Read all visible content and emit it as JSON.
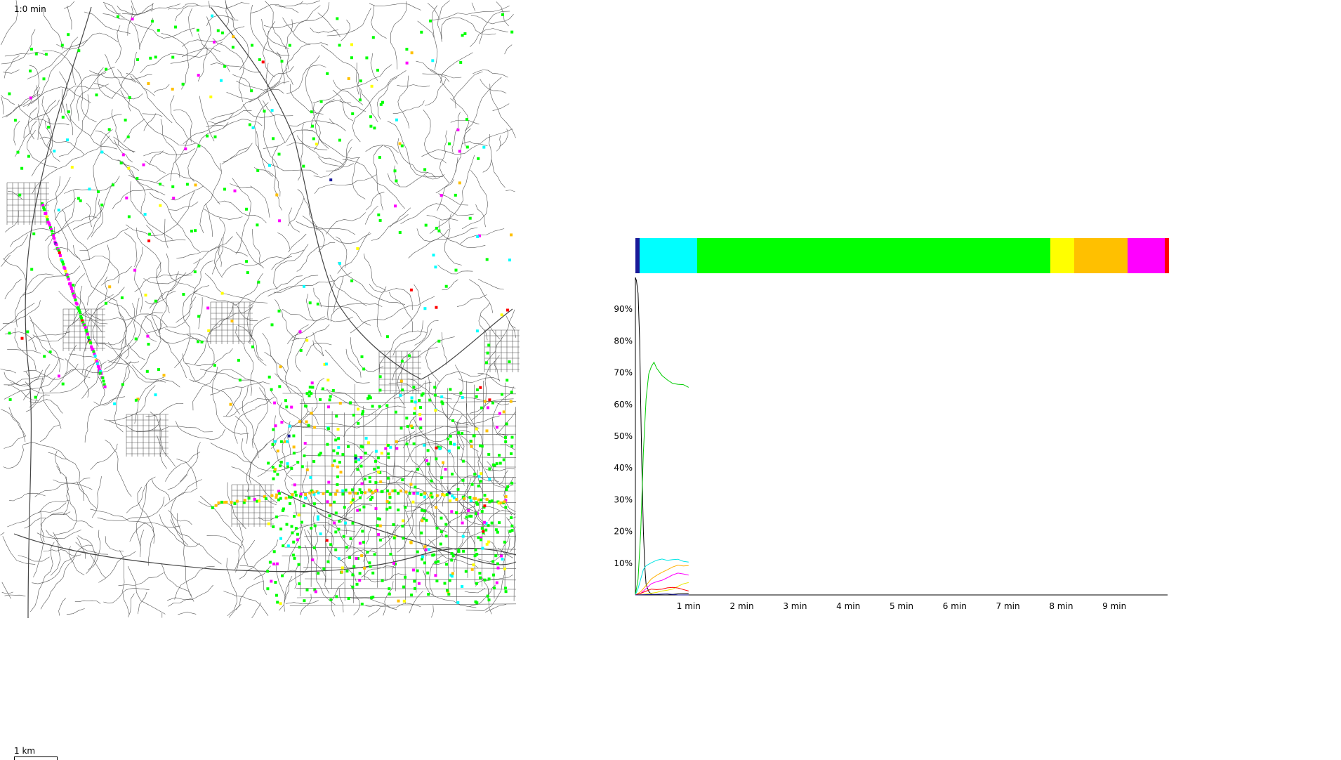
{
  "view": {
    "time_readout": "1:0 min",
    "scale_label": "1 km"
  },
  "state_colors": {
    "navy": "#1a1a99",
    "cyan": "#00ffff",
    "green": "#00ff00",
    "yellow": "#ffff00",
    "orange": "#ffc000",
    "magenta": "#ff00ff",
    "red": "#ff0000",
    "black": "#000000"
  },
  "distribution_bar": {
    "segments": [
      {
        "color": "#1a1a99",
        "fraction": 0.008
      },
      {
        "color": "#00ffff",
        "fraction": 0.108
      },
      {
        "color": "#00ff00",
        "fraction": 0.662
      },
      {
        "color": "#ffff00",
        "fraction": 0.044
      },
      {
        "color": "#ffc000",
        "fraction": 0.1
      },
      {
        "color": "#ff00ff",
        "fraction": 0.07
      },
      {
        "color": "#ff0000",
        "fraction": 0.008
      }
    ]
  },
  "chart_data": {
    "type": "line",
    "xlabel": "",
    "ylabel": "",
    "x_unit": "min",
    "xlim": [
      0,
      10
    ],
    "ylim": [
      0,
      100
    ],
    "x_ticks": [
      {
        "value": 1,
        "label": "1 min"
      },
      {
        "value": 2,
        "label": "2 min"
      },
      {
        "value": 3,
        "label": "3 min"
      },
      {
        "value": 4,
        "label": "4 min"
      },
      {
        "value": 5,
        "label": "5 min"
      },
      {
        "value": 6,
        "label": "6 min"
      },
      {
        "value": 7,
        "label": "7 min"
      },
      {
        "value": 8,
        "label": "8 min"
      },
      {
        "value": 9,
        "label": "9 min"
      }
    ],
    "y_ticks": [
      {
        "value": 10,
        "label": "10%"
      },
      {
        "value": 20,
        "label": "20%"
      },
      {
        "value": 30,
        "label": "30%"
      },
      {
        "value": 40,
        "label": "40%"
      },
      {
        "value": 50,
        "label": "50%"
      },
      {
        "value": 60,
        "label": "60%"
      },
      {
        "value": 70,
        "label": "70%"
      },
      {
        "value": 80,
        "label": "80%"
      },
      {
        "value": 90,
        "label": "90%"
      }
    ],
    "series": [
      {
        "color": "#000000",
        "x": [
          0,
          0.02,
          0.05,
          0.08,
          0.1,
          0.12,
          0.15,
          0.18,
          0.2,
          0.25,
          0.3,
          0.4,
          0.6,
          0.8,
          1.0
        ],
        "y": [
          100,
          99,
          95,
          80,
          60,
          42,
          20,
          8,
          3,
          1,
          0.5,
          0.2,
          0.1,
          0.1,
          0.1
        ]
      },
      {
        "color": "#00cc00",
        "x": [
          0,
          0.05,
          0.1,
          0.15,
          0.2,
          0.25,
          0.3,
          0.35,
          0.4,
          0.5,
          0.6,
          0.7,
          0.8,
          0.9,
          1.0
        ],
        "y": [
          0,
          5,
          20,
          45,
          62,
          70,
          72,
          73,
          71,
          69,
          68,
          67,
          66.5,
          66,
          65
        ]
      },
      {
        "color": "#00e5e5",
        "x": [
          0,
          0.05,
          0.1,
          0.15,
          0.2,
          0.3,
          0.4,
          0.5,
          0.6,
          0.7,
          0.8,
          0.9,
          1.0
        ],
        "y": [
          0,
          2,
          5,
          8,
          9.5,
          10.5,
          11,
          11,
          10.5,
          11,
          11.5,
          11,
          10.5
        ]
      },
      {
        "color": "#ffb000",
        "x": [
          0,
          0.1,
          0.2,
          0.3,
          0.4,
          0.5,
          0.6,
          0.7,
          0.8,
          0.9,
          1.0
        ],
        "y": [
          0,
          1,
          3,
          5,
          6.5,
          7.5,
          8,
          8.5,
          9,
          9,
          9.5
        ]
      },
      {
        "color": "#ff00ff",
        "x": [
          0,
          0.1,
          0.2,
          0.3,
          0.4,
          0.5,
          0.6,
          0.7,
          0.8,
          0.9,
          1.0
        ],
        "y": [
          0,
          0.5,
          2,
          3.5,
          4.5,
          5,
          5.5,
          6,
          6.5,
          6.5,
          6.5
        ]
      },
      {
        "color": "#e8e800",
        "x": [
          0,
          0.2,
          0.4,
          0.5,
          0.6,
          0.7,
          0.8,
          0.9,
          1.0
        ],
        "y": [
          0,
          0.3,
          0.8,
          1.2,
          1.8,
          2.2,
          2.8,
          3.2,
          3.5
        ]
      },
      {
        "color": "#ff0000",
        "x": [
          0,
          0.1,
          0.2,
          0.3,
          0.4,
          0.5,
          0.6,
          0.7,
          0.8,
          0.9,
          1.0
        ],
        "y": [
          0,
          0.5,
          1.2,
          1.8,
          2,
          2.2,
          2.3,
          2.1,
          1.8,
          1.6,
          1.5
        ]
      },
      {
        "color": "#1a1a99",
        "x": [
          0,
          0.2,
          0.4,
          0.6,
          0.8,
          1.0
        ],
        "y": [
          0,
          0.1,
          0.2,
          0.3,
          0.3,
          0.4
        ]
      }
    ]
  }
}
